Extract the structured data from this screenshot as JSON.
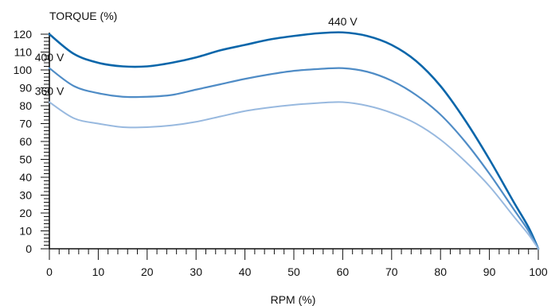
{
  "chart_data": {
    "type": "line",
    "title": "",
    "ylabel": "TORQUE (%)",
    "xlabel": "RPM (%)",
    "xlim": [
      0,
      100
    ],
    "ylim": [
      0,
      120
    ],
    "x_ticks": [
      0,
      10,
      20,
      30,
      40,
      50,
      60,
      70,
      80,
      90,
      100
    ],
    "x_tick_labels": [
      "0",
      "10",
      "20",
      "30",
      "40",
      "50",
      "60",
      "70",
      "80",
      "90",
      "100"
    ],
    "x_minor_step": 2,
    "y_ticks": [
      0,
      10,
      20,
      30,
      40,
      50,
      60,
      70,
      80,
      90,
      100,
      110,
      120
    ],
    "y_tick_labels": [
      "0",
      "10",
      "20",
      "30",
      "40",
      "50",
      "60",
      "70",
      "80",
      "90",
      "100",
      "110",
      "120"
    ],
    "y_minor_step": 2,
    "grid": false,
    "series": [
      {
        "name": "440 V",
        "color": "#0a66aa",
        "x": [
          0,
          5,
          10,
          15,
          20,
          25,
          30,
          35,
          40,
          45,
          50,
          55,
          60,
          65,
          70,
          75,
          80,
          85,
          90,
          95,
          98,
          100
        ],
        "y": [
          120,
          109,
          104,
          102,
          102,
          104,
          107,
          111,
          114,
          117,
          119,
          120.5,
          121,
          119,
          114,
          105,
          91,
          72,
          50,
          26,
          12,
          0
        ]
      },
      {
        "name": "400 V",
        "color": "#4f8cc6",
        "x": [
          0,
          5,
          10,
          15,
          20,
          25,
          30,
          35,
          40,
          45,
          50,
          55,
          60,
          65,
          70,
          75,
          80,
          85,
          90,
          95,
          98,
          100
        ],
        "y": [
          101,
          91,
          87,
          85,
          85,
          86,
          89,
          92,
          95,
          97.5,
          99.5,
          100.5,
          101,
          99,
          94,
          86,
          75,
          60,
          42,
          22,
          10,
          0
        ]
      },
      {
        "name": "360 V",
        "color": "#98b9df",
        "x": [
          0,
          5,
          10,
          15,
          20,
          25,
          30,
          35,
          40,
          45,
          50,
          55,
          60,
          65,
          70,
          75,
          80,
          85,
          90,
          95,
          98,
          100
        ],
        "y": [
          82,
          73,
          70,
          68,
          68,
          69,
          71,
          74,
          77,
          79,
          80.5,
          81.5,
          82,
          80,
          76,
          70,
          61,
          49,
          35,
          18,
          8,
          0
        ]
      }
    ]
  }
}
